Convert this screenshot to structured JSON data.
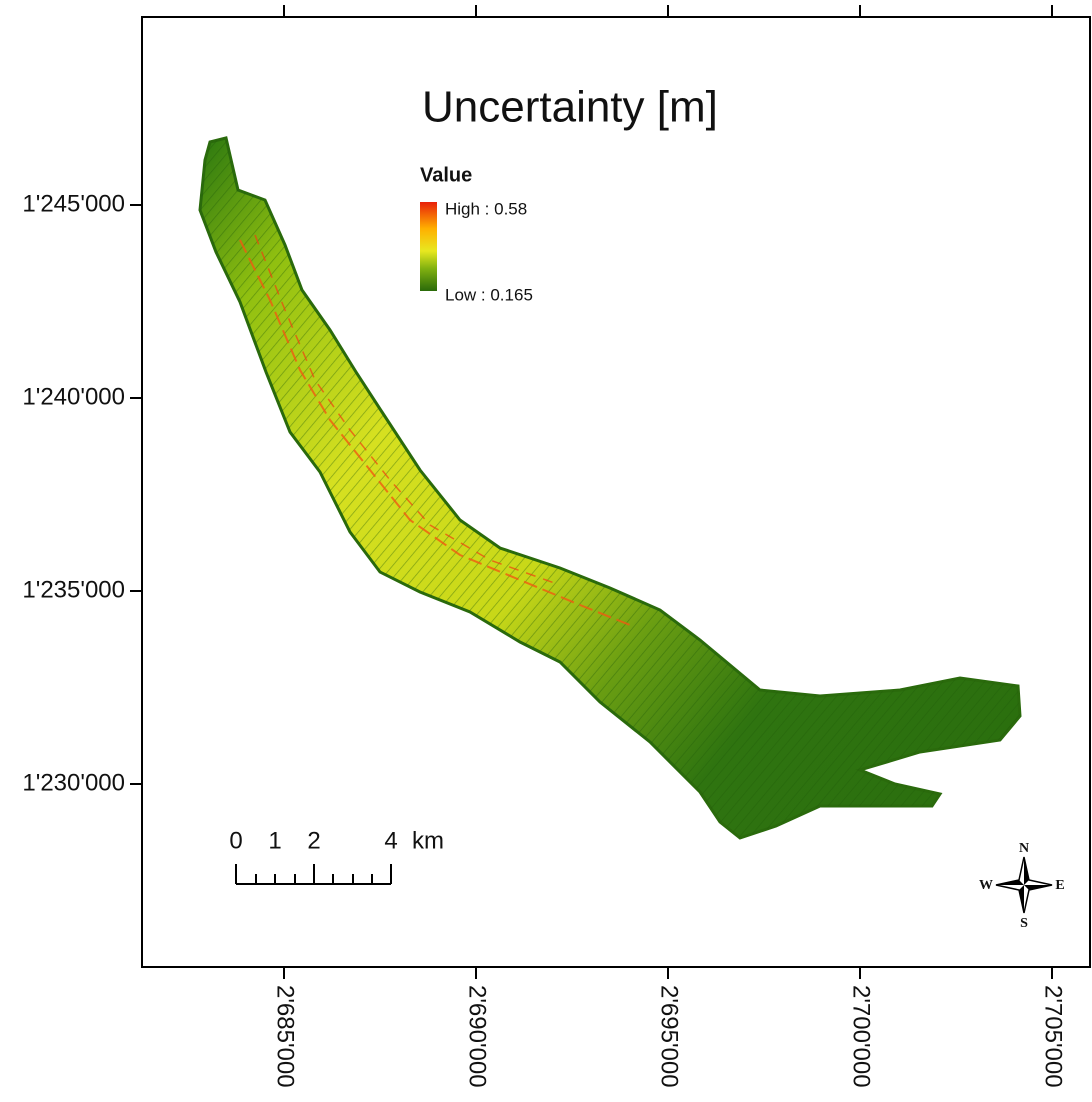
{
  "map": {
    "title": "Uncertainty [m]",
    "legend": {
      "title": "Value",
      "high": "High : 0.58",
      "low": "Low : 0.165"
    },
    "x_ticks": [
      "2'685'000",
      "2'690'000",
      "2'695'000",
      "2'700'000",
      "2'705'000"
    ],
    "y_ticks": [
      "1'245'000",
      "1'240'000",
      "1'235'000",
      "1'230'000"
    ],
    "scale_bar": {
      "labels": [
        "0",
        "1",
        "2",
        "4"
      ],
      "unit": "km"
    },
    "compass": {
      "north": "N",
      "east": "E",
      "south": "S",
      "west": "W"
    }
  }
}
